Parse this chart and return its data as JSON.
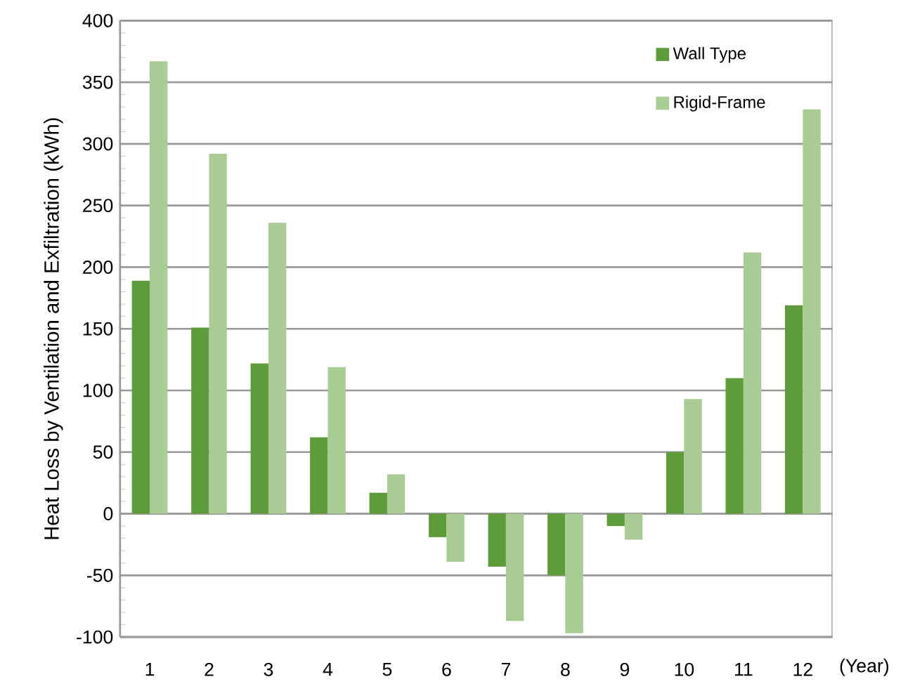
{
  "chart_data": {
    "type": "bar",
    "ylabel": "Heat Loss by Ventilation and Exfiltration  (kWh)",
    "xlabel": "(Year)",
    "categories": [
      "1",
      "2",
      "3",
      "4",
      "5",
      "6",
      "7",
      "8",
      "9",
      "10",
      "11",
      "12"
    ],
    "series": [
      {
        "name": "Wall Type",
        "color": "#5e9b3a",
        "values": [
          189,
          151,
          122,
          62,
          17,
          -19,
          -43,
          -50,
          -10,
          50,
          110,
          169
        ]
      },
      {
        "name": "Rigid-Frame",
        "color": "#a8cc94",
        "values": [
          367,
          292,
          236,
          119,
          32,
          -39,
          -87,
          -97,
          -21,
          93,
          212,
          328
        ]
      }
    ],
    "ylim": [
      -100,
      400
    ],
    "yticks": [
      -100,
      -50,
      0,
      50,
      100,
      150,
      200,
      250,
      300,
      350,
      400
    ],
    "grid": "y",
    "legend": "top right"
  }
}
